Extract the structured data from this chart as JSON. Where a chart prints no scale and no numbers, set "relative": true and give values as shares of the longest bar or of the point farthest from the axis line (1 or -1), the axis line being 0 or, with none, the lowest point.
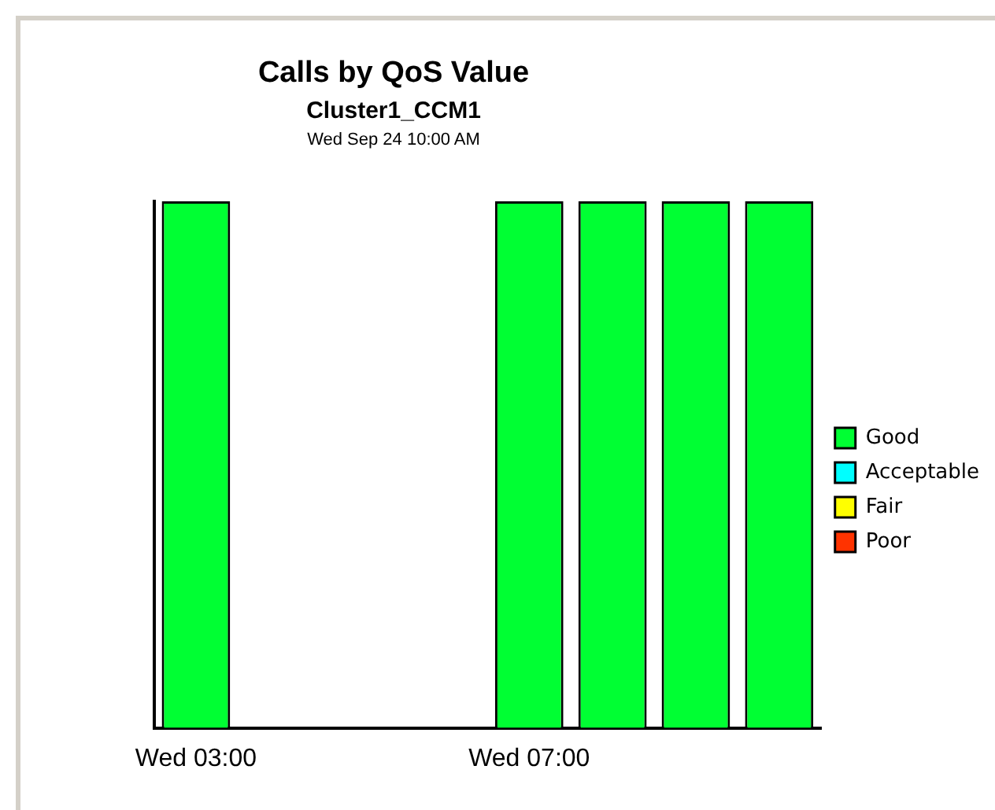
{
  "chart_data": {
    "type": "bar",
    "title": "Calls by QoS Value",
    "subtitle": "Cluster1_CCM1",
    "annotations": [
      "Wed Sep 24 10:00 AM"
    ],
    "categories": [
      "Wed 03:00",
      null,
      null,
      null,
      "Wed 07:00",
      null,
      null,
      null
    ],
    "series": [
      {
        "name": "Good",
        "color": "#00ff33",
        "values": [
          1,
          null,
          null,
          null,
          1,
          1,
          1,
          1
        ]
      },
      {
        "name": "Acceptable",
        "color": "#00ffff",
        "values": [
          0,
          null,
          null,
          null,
          0,
          0,
          0,
          0
        ]
      },
      {
        "name": "Fair",
        "color": "#ffff00",
        "values": [
          0,
          null,
          null,
          null,
          0,
          0,
          0,
          0
        ]
      },
      {
        "name": "Poor",
        "color": "#ff3300",
        "values": [
          0,
          null,
          null,
          null,
          0,
          0,
          0,
          0
        ]
      }
    ],
    "stacked": true,
    "relative": true,
    "legend": "right",
    "grid": false
  }
}
